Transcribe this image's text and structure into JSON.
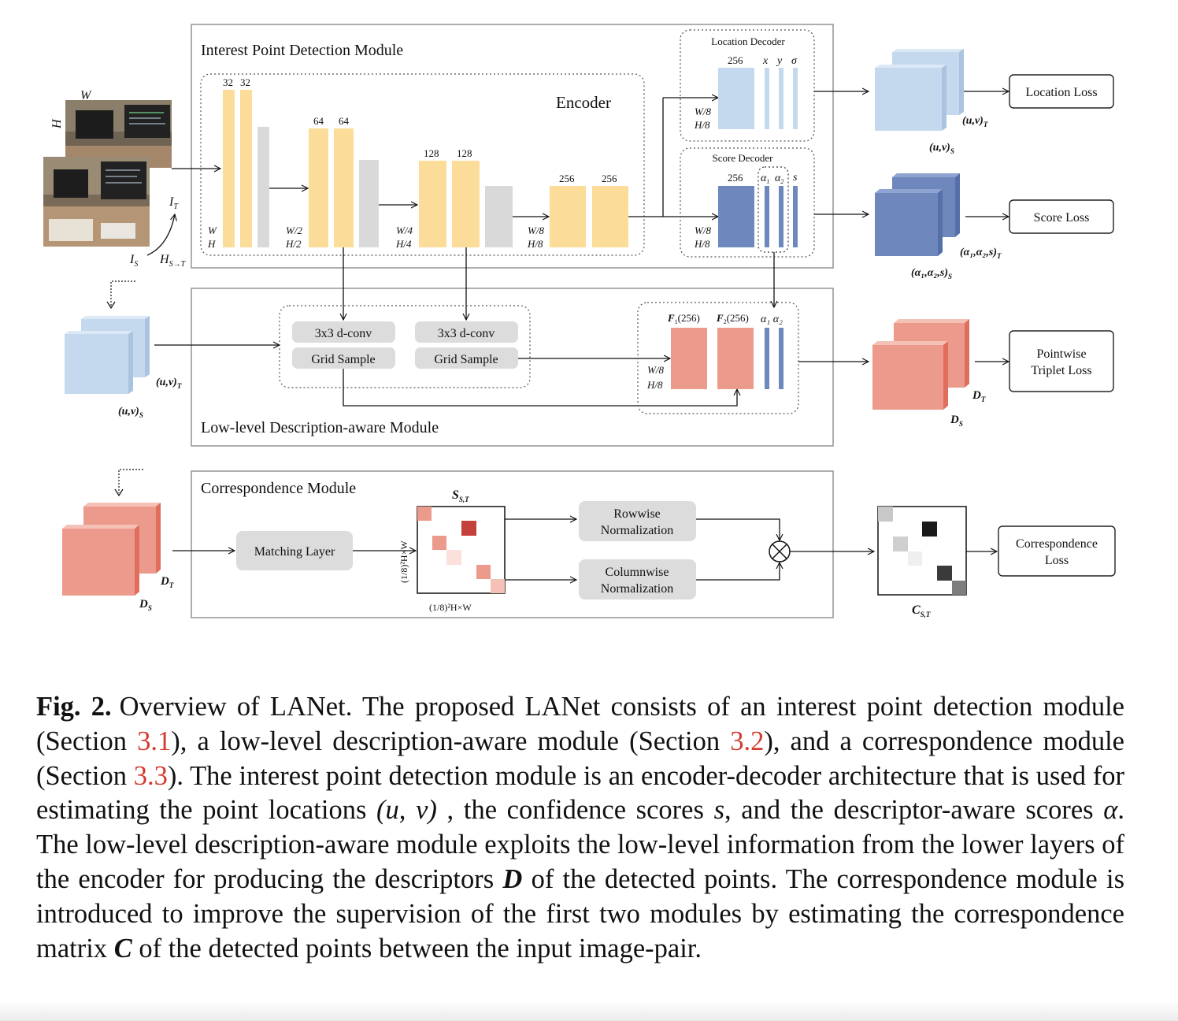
{
  "modules": {
    "interest_point": "Interest Point Detection Module",
    "low_level": "Low-level Description-aware Module",
    "correspondence": "Correspondence Module"
  },
  "encoder": {
    "title": "Encoder",
    "channels": [
      "32",
      "32",
      "64",
      "64",
      "128",
      "128",
      "256",
      "256"
    ],
    "dims": [
      [
        "W",
        "H"
      ],
      [
        "W/2",
        "H/2"
      ],
      [
        "W/4",
        "H/4"
      ],
      [
        "W/8",
        "H/8"
      ]
    ]
  },
  "input": {
    "w": "W",
    "h": "H",
    "it": "I",
    "it_sub": "T",
    "is": "I",
    "is_sub": "S",
    "hom": "H",
    "hom_sub": "S→T"
  },
  "location_decoder": {
    "title": "Location Decoder",
    "ch": "256",
    "x": "x",
    "y": "y",
    "sigma": "σ",
    "dim_w": "W/8",
    "dim_h": "H/8"
  },
  "score_decoder": {
    "title": "Score Decoder",
    "ch": "256",
    "a1": "α",
    "a1_sub": "1",
    "a2": "α",
    "a2_sub": "2",
    "s": "s",
    "dim_w": "W/8",
    "dim_h": "H/8"
  },
  "location_loss": "Location Loss",
  "score_loss": "Score Loss",
  "uv_t": "(u,v)",
  "uv_t_sub": "T",
  "uv_s": "(u,v)",
  "uv_s_sub": "S",
  "as_t": "(α₁,α₂,s)",
  "as_t_sub": "T",
  "as_s": "(α₁,α₂,s)",
  "as_s_sub": "S",
  "dconv": "3x3 d-conv",
  "grid_sample": "Grid Sample",
  "f1": "F",
  "f1_sub": "1",
  "f1_ch": "(256)",
  "f2": "F",
  "f2_sub": "2",
  "f2_ch": "(256)",
  "alpha12": "α₁ α₂",
  "f_dim_w": "W/8",
  "f_dim_h": "H/8",
  "triplet_loss": [
    "Pointwise",
    "Triplet Loss"
  ],
  "d_t": "D",
  "d_t_sub": "T",
  "d_s": "D",
  "d_s_sub": "S",
  "matching_layer": "Matching Layer",
  "s_st": "S",
  "s_st_sub": "S,T",
  "mat_axis": "(1/8)²H×W",
  "rowwise": [
    "Rowwise",
    "Normalization"
  ],
  "columnwise": [
    "Columnwise",
    "Normalization"
  ],
  "c_st": "C",
  "c_st_sub": "S,T",
  "corr_loss": [
    "Correspondence",
    "Loss"
  ],
  "colors": {
    "encoder": "#fbdc98",
    "pool": "#d9d9d9",
    "location": "#c5d9ee",
    "score": "#6e88bd",
    "descriptor": "#ec9a8b",
    "button": "#dcdcdc"
  },
  "caption": {
    "label": "Fig. 2.",
    "t1": "Overview of LANet. The proposed LANet consists of an interest point detection module (Section ",
    "r1": "3.1",
    "t2": "), a low-level description-aware module (Section ",
    "r2": "3.2",
    "t3": "), and a correspondence module (Section ",
    "r3": "3.3",
    "t4": "). The interest point detection module is an encoder-decoder architecture that is used for estimating the point locations ",
    "uv": "(u, v)",
    "t5": " , the confidence scores ",
    "s": "s",
    "t6": ", and the descriptor-aware scores ",
    "alpha": "α",
    "t7": ". The low-level description-aware module exploits the low-level information from the lower layers of the encoder for producing the descriptors ",
    "D": "D",
    "t8": " of the detected points. The correspondence module is introduced to improve the supervision of the first two modules by estimating the correspondence matrix ",
    "C": "C",
    "t9": " of the detected points between the input image-pair."
  }
}
